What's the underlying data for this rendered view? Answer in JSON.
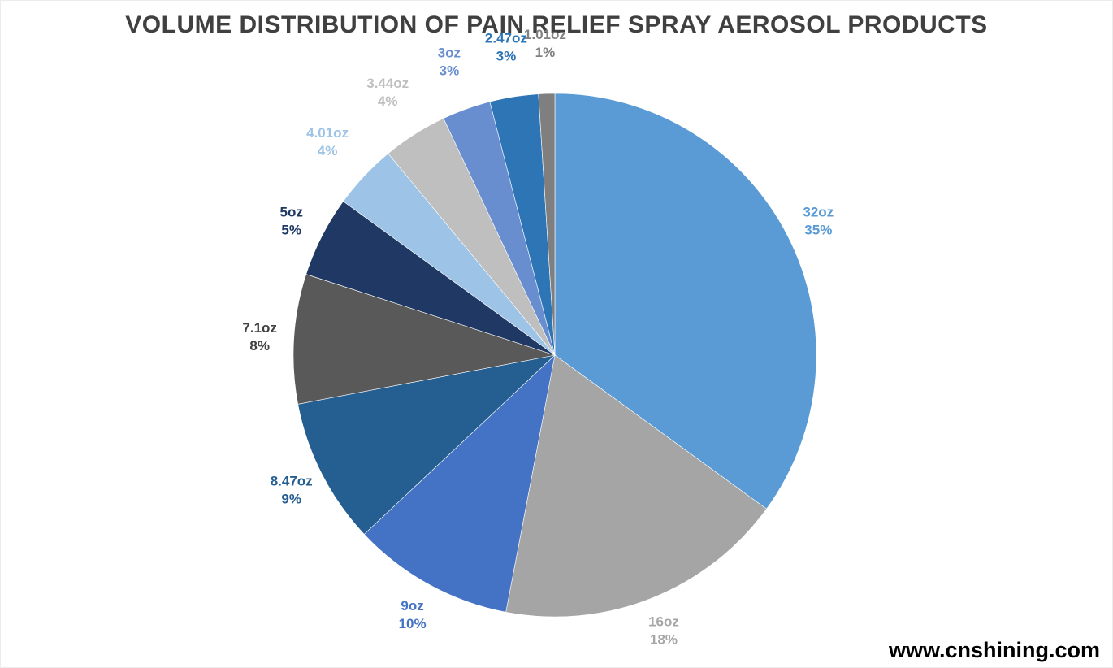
{
  "chart_data": {
    "type": "pie",
    "title": "VOLUME DISTRIBUTION OF PAIN RELIEF SPRAY AEROSOL PRODUCTS",
    "legend": "none",
    "labels_position": "outside",
    "start_angle_deg": 0,
    "direction": "clockwise",
    "slices": [
      {
        "label": "32oz",
        "value": 35,
        "color": "#5B9BD5",
        "label_color": "#5B9BD5"
      },
      {
        "label": "16oz",
        "value": 18,
        "color": "#A5A5A5",
        "label_color": "#A6A6A6"
      },
      {
        "label": "9oz",
        "value": 10,
        "color": "#4472C4",
        "label_color": "#4472C4"
      },
      {
        "label": "8.47oz",
        "value": 9,
        "color": "#255E91",
        "label_color": "#255E91"
      },
      {
        "label": "7.1oz",
        "value": 8,
        "color": "#595959",
        "label_color": "#404040"
      },
      {
        "label": "5oz",
        "value": 5,
        "color": "#1F3864",
        "label_color": "#1F3864"
      },
      {
        "label": "4.01oz",
        "value": 4,
        "color": "#9DC3E6",
        "label_color": "#9DC3E6"
      },
      {
        "label": "3.44oz",
        "value": 4,
        "color": "#BFBFBF",
        "label_color": "#BFBFBF"
      },
      {
        "label": "3oz",
        "value": 3,
        "color": "#698ED0",
        "label_color": "#698ED0"
      },
      {
        "label": "2.47oz",
        "value": 3,
        "color": "#2E75B6",
        "label_color": "#2E75B6"
      },
      {
        "label": "1.01oz",
        "value": 1,
        "color": "#7F7F7F",
        "label_color": "#808080"
      }
    ]
  },
  "watermark": {
    "text": "www.cnshining.com",
    "color": "#000000"
  }
}
